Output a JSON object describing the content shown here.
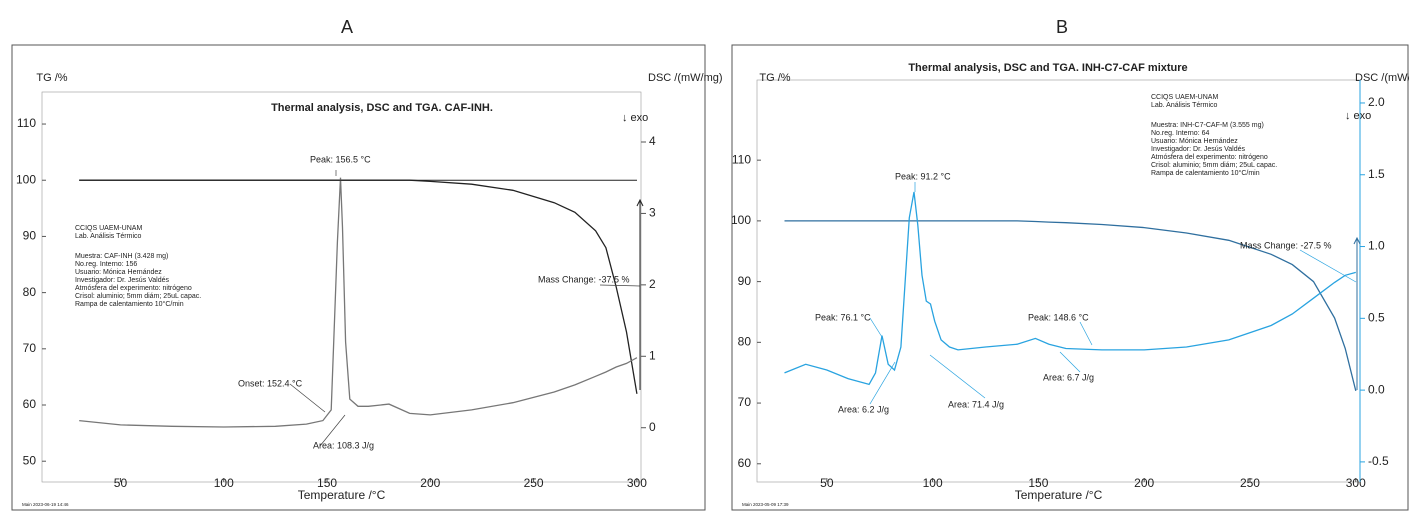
{
  "chart_data": [
    {
      "type": "line",
      "panel_label": "A",
      "title": "Thermal analysis, DSC and TGA. CAF-INH.",
      "ylabel": "TG /%",
      "y2label": "DSC /(mW/mg)",
      "exo_label": "↓ exo",
      "xlabel": "Temperature /°C",
      "xlim": [
        12,
        302
      ],
      "xticks": [
        50,
        100,
        150,
        200,
        250,
        300
      ],
      "ylim": [
        46.3,
        115.7
      ],
      "yticks": [
        50,
        60,
        70,
        80,
        90,
        100,
        110
      ],
      "y2lim": [
        -0.76,
        4.7
      ],
      "y2ticks": [
        0,
        1,
        2,
        3,
        4
      ],
      "x": [
        30,
        50,
        75,
        100,
        125,
        140,
        148,
        152,
        154,
        155,
        156.5,
        157.5,
        159,
        161,
        165,
        170,
        180,
        190,
        200,
        220,
        240,
        260,
        270,
        280,
        285,
        290,
        295,
        300
      ],
      "series": [
        {
          "color": "#222222",
          "values": [
            100,
            100,
            100,
            100,
            100,
            100,
            100,
            100,
            100,
            100,
            100,
            100,
            100,
            100,
            100,
            100,
            100,
            100,
            99.8,
            99.3,
            98.2,
            96,
            94.3,
            91,
            88,
            81,
            73,
            62
          ]
        },
        {
          "color": "#777777",
          "axis": "y2",
          "values": [
            0.1,
            0.04,
            0.02,
            0.01,
            0.02,
            0.05,
            0.1,
            0.25,
            1.8,
            2.6,
            3.5,
            2.8,
            1.2,
            0.4,
            0.3,
            0.3,
            0.33,
            0.2,
            0.18,
            0.25,
            0.35,
            0.5,
            0.6,
            0.72,
            0.78,
            0.85,
            0.9,
            0.98
          ]
        }
      ],
      "annotations": [
        "Peak: 156.5 °C",
        "Onset: 152.4 °C",
        "Area: 108.3 J/g",
        "Mass Change: -37.5 %"
      ],
      "info": [
        "CCIQS UAEM-UNAM",
        "Lab. Análisis Térmico",
        "Muestra: CAF-INH (3.428 mg)",
        "No.reg. Interno: 156",
        "Usuario: Mónica Hernández",
        "Investigador: Dr. Jesús Valdés",
        "Atmósfera del experimento: nitrógeno",
        "Crisol: aluminio; 5mm diám; 25uL capac.",
        "Rampa de calentamiento 10°C/min"
      ],
      "footer": "Main   2023-06-19 14:46"
    },
    {
      "type": "line",
      "panel_label": "B",
      "title": "Thermal analysis, DSC and TGA. INH-C7-CAF mixture",
      "ylabel": "TG /%",
      "y2label": "DSC /(mW/mg)",
      "exo_label": "↓ exo",
      "xlabel": "Temperature /°C",
      "xlim": [
        17,
        302
      ],
      "xticks": [
        50,
        100,
        150,
        200,
        250,
        300
      ],
      "ylim": [
        57.0,
        123.2
      ],
      "yticks": [
        60,
        70,
        80,
        90,
        100,
        110
      ],
      "y2lim": [
        -0.64,
        2.16
      ],
      "y2ticks": [
        -0.5,
        {
          "value": 0,
          "label": "0.0"
        },
        0.5,
        {
          "value": 1,
          "label": "1.0"
        },
        1.5,
        {
          "value": 2,
          "label": "2.0"
        }
      ],
      "x": [
        30,
        40,
        50,
        60,
        70,
        73,
        76.1,
        79,
        82,
        85,
        87,
        89,
        91.2,
        93,
        95,
        97,
        99,
        101,
        104,
        108,
        112,
        125,
        140,
        148.6,
        155,
        163,
        180,
        200,
        220,
        240,
        260,
        270,
        280,
        290,
        295,
        300
      ],
      "series": [
        {
          "color": "#2f6f9f",
          "values": [
            100,
            100,
            100,
            100,
            100,
            100,
            100,
            100,
            100,
            100,
            100,
            100,
            100,
            100,
            100,
            100,
            100,
            100,
            100,
            100,
            100,
            100,
            100,
            99.9,
            99.8,
            99.7,
            99.4,
            98.9,
            98,
            96.8,
            94.5,
            92.8,
            90,
            84,
            79,
            72
          ]
        },
        {
          "color": "#29a3e0",
          "axis": "y2",
          "values": [
            0.12,
            0.18,
            0.14,
            0.08,
            0.04,
            0.12,
            0.38,
            0.18,
            0.14,
            0.3,
            0.75,
            1.2,
            1.38,
            1.15,
            0.8,
            0.62,
            0.6,
            0.48,
            0.35,
            0.3,
            0.28,
            0.3,
            0.32,
            0.36,
            0.32,
            0.29,
            0.28,
            0.28,
            0.3,
            0.35,
            0.45,
            0.53,
            0.64,
            0.75,
            0.8,
            0.82
          ]
        }
      ],
      "annotations": [
        "Peak: 91.2 °C",
        "Peak: 76.1 °C",
        "Peak: 148.6 °C",
        "Area: 6.2 J/g",
        "Area: 71.4 J/g",
        "Area: 6.7 J/g",
        "Mass Change: -27.5 %"
      ],
      "info": [
        "CCIQS UAEM-UNAM",
        "Lab. Análisis Térmico",
        "Muestra: INH-C7-CAF-M (3.555 mg)",
        "No.reg. Interno: 64",
        "Usuario: Mónica Hernández",
        "Investigador: Dr. Jesús Valdés",
        "Atmósfera del experimento: nitrógeno",
        "Crisol: aluminio; 5mm diám; 25uL capac.",
        "Rampa de calentamiento 10°C/min"
      ],
      "footer": "Main   2023-05-09 17:39"
    }
  ]
}
